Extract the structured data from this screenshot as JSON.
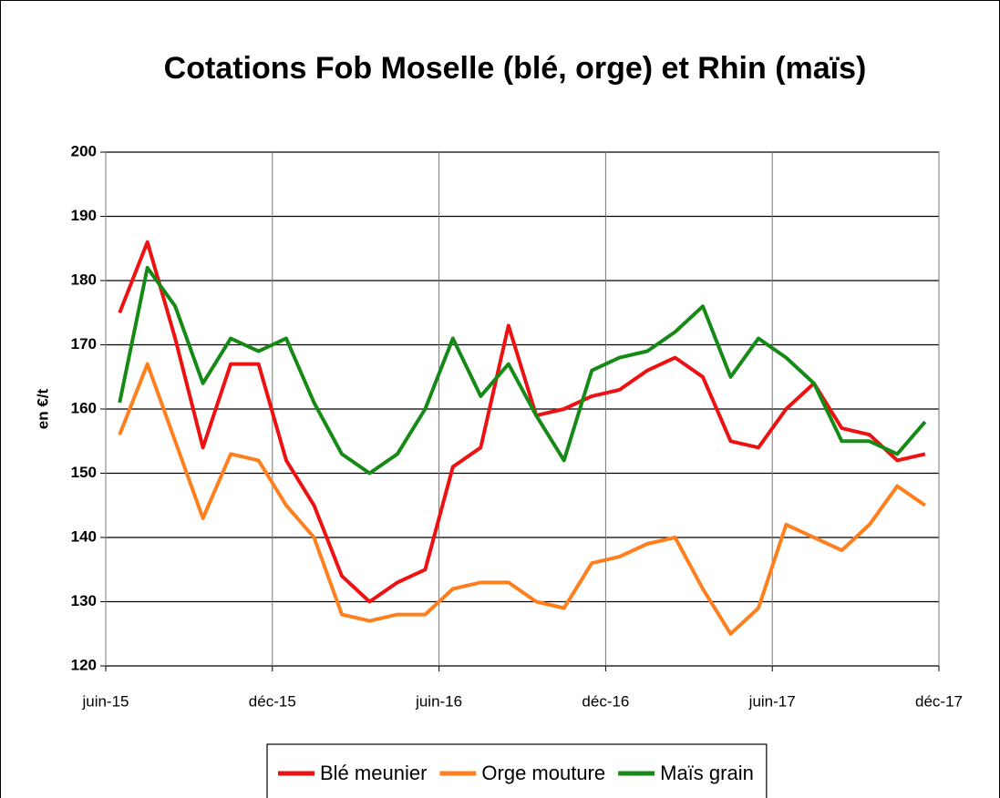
{
  "chart_data": {
    "type": "line",
    "title": "Cotations Fob Moselle (blé, orge) et Rhin (maïs)",
    "y_label": "en €/t",
    "x": [
      "2015-06",
      "2015-07",
      "2015-08",
      "2015-09",
      "2015-10",
      "2015-11",
      "2015-12",
      "2016-01",
      "2016-02",
      "2016-03",
      "2016-04",
      "2016-05",
      "2016-06",
      "2016-07",
      "2016-08",
      "2016-09",
      "2016-10",
      "2016-11",
      "2016-12",
      "2017-01",
      "2017-02",
      "2017-03",
      "2017-04",
      "2017-05",
      "2017-06",
      "2017-07",
      "2017-08",
      "2017-09",
      "2017-10",
      "2017-11"
    ],
    "series": [
      {
        "name": "Blé meunier",
        "color": "#ee1111",
        "values": [
          175,
          186,
          171,
          154,
          167,
          167,
          152,
          145,
          134,
          130,
          133,
          135,
          151,
          154,
          173,
          159,
          160,
          162,
          163,
          166,
          168,
          165,
          155,
          154,
          160,
          164,
          157,
          156,
          152,
          153
        ]
      },
      {
        "name": "Orge mouture",
        "color": "#ff7f1e",
        "values": [
          156,
          167,
          155,
          143,
          153,
          152,
          145,
          140,
          128,
          127,
          128,
          128,
          132,
          133,
          133,
          130,
          129,
          136,
          137,
          139,
          140,
          132,
          125,
          129,
          142,
          140,
          138,
          142,
          148,
          145
        ]
      },
      {
        "name": "Maïs grain",
        "color": "#168a16",
        "values": [
          161,
          182,
          176,
          164,
          171,
          169,
          171,
          161,
          153,
          150,
          153,
          160,
          171,
          162,
          167,
          159,
          152,
          166,
          168,
          169,
          172,
          176,
          165,
          171,
          168,
          164,
          155,
          155,
          153,
          158
        ]
      }
    ],
    "xlim": [
      "2015-06",
      "2017-12"
    ],
    "xticks": [
      {
        "value": "2015-06",
        "label": "juin-15"
      },
      {
        "value": "2015-12",
        "label": "déc-15"
      },
      {
        "value": "2016-06",
        "label": "juin-16"
      },
      {
        "value": "2016-12",
        "label": "déc-16"
      },
      {
        "value": "2017-06",
        "label": "juin-17"
      },
      {
        "value": "2017-12",
        "label": "déc-17"
      }
    ],
    "ylim": [
      120,
      200
    ],
    "yticks": [
      120,
      130,
      140,
      150,
      160,
      170,
      180,
      190,
      200
    ],
    "grid": true,
    "legend": "bottom"
  }
}
